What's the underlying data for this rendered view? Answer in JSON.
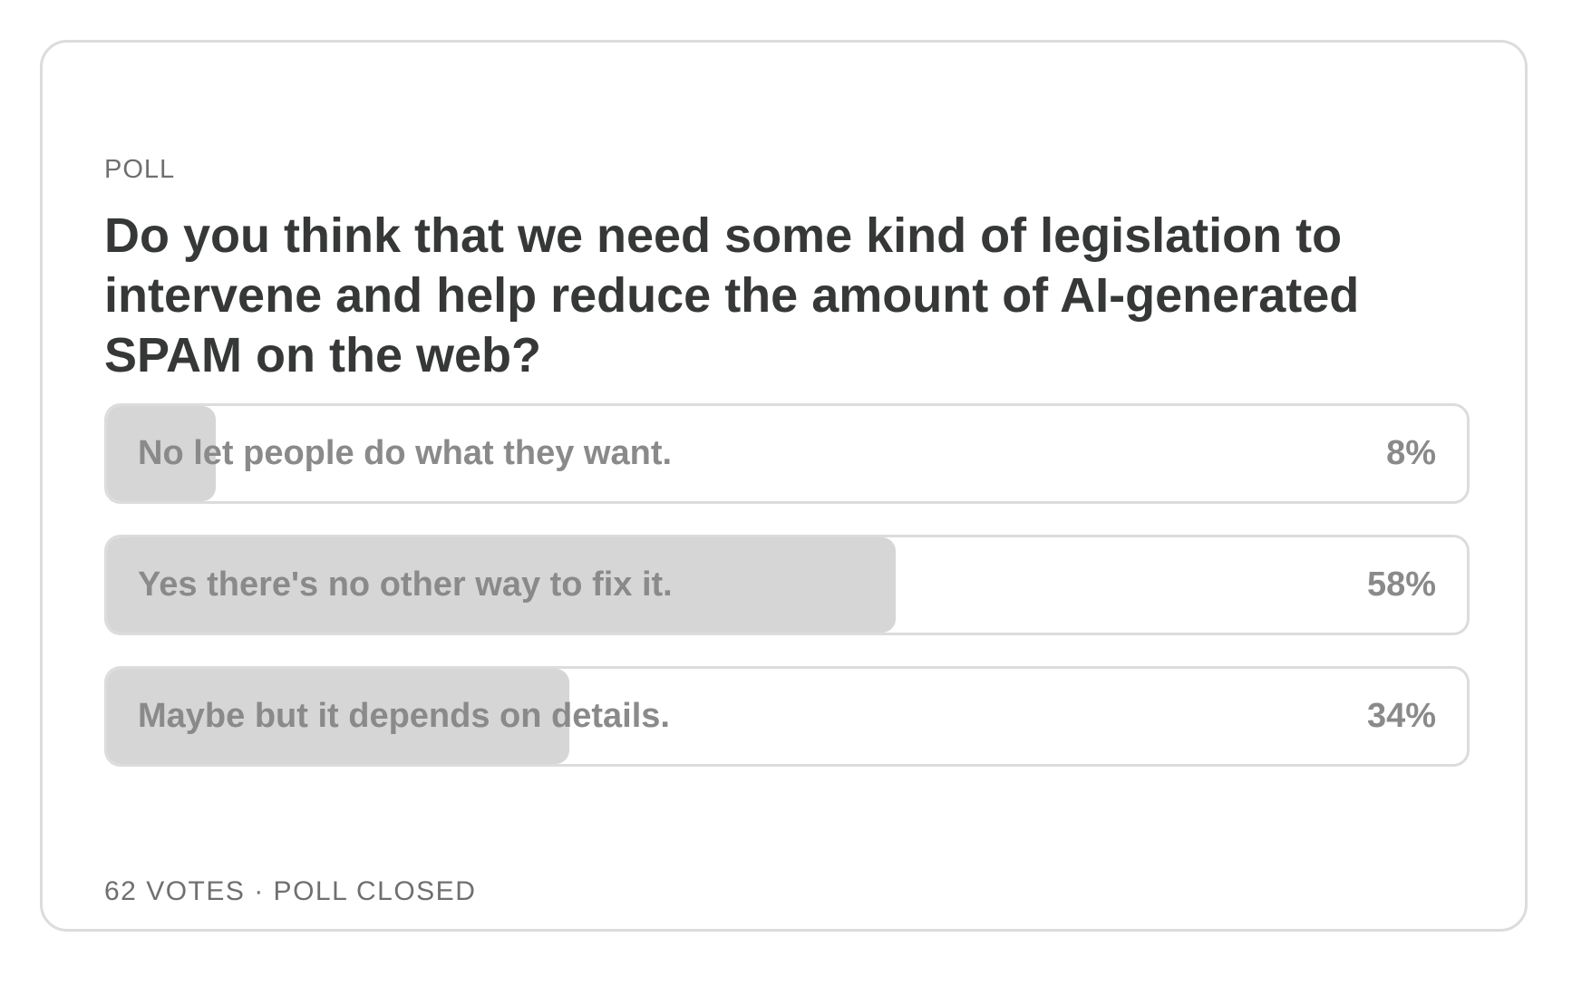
{
  "poll": {
    "label": "POLL",
    "question": "Do you think that we need some kind of legislation to intervene and help reduce the amount of AI-generated SPAM on the web?",
    "options": [
      {
        "text": "No let people do what they want.",
        "percent": 8,
        "percent_label": "8%"
      },
      {
        "text": "Yes there's no other way to fix it.",
        "percent": 58,
        "percent_label": "58%"
      },
      {
        "text": "Maybe but it depends on details.",
        "percent": 34,
        "percent_label": "34%"
      }
    ],
    "footer": "62 VOTES · POLL CLOSED"
  }
}
